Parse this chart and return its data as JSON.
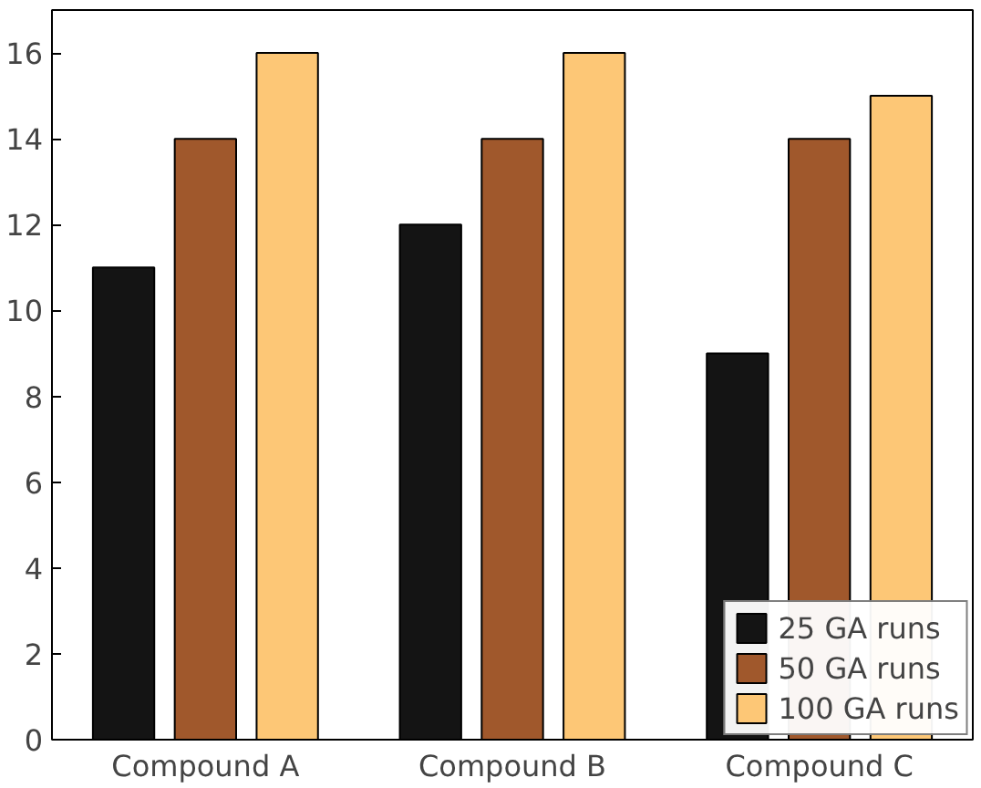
{
  "chart_data": {
    "type": "bar",
    "categories": [
      "Compound A",
      "Compound B",
      "Compound C"
    ],
    "series": [
      {
        "name": "25 GA runs",
        "color": "#141414",
        "values": [
          11,
          12,
          9
        ]
      },
      {
        "name": "50 GA runs",
        "color": "#a0582c",
        "values": [
          14,
          14,
          14
        ]
      },
      {
        "name": "100 GA runs",
        "color": "#fdc776",
        "values": [
          16,
          16,
          15
        ]
      }
    ],
    "ylim": [
      0,
      17
    ],
    "yticks": [
      0,
      2,
      4,
      6,
      8,
      10,
      12,
      14,
      16
    ],
    "grid": false,
    "legend": "bottom right"
  }
}
